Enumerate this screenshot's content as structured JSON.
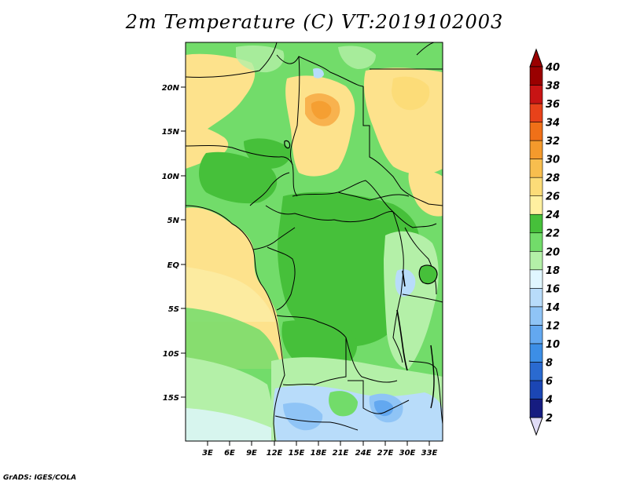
{
  "title": "2m Temperature (C) VT:2019102003",
  "footer": "GrADS: IGES/COLA",
  "map": {
    "lat_labels": [
      "20N",
      "15N",
      "10N",
      "5N",
      "EQ",
      "5S",
      "10S",
      "15S"
    ],
    "lon_labels": [
      "3E",
      "6E",
      "9E",
      "12E",
      "15E",
      "18E",
      "21E",
      "24E",
      "27E",
      "30E",
      "33E"
    ]
  },
  "colorbar": {
    "levels": [
      "2",
      "4",
      "6",
      "8",
      "10",
      "12",
      "14",
      "16",
      "18",
      "20",
      "22",
      "24",
      "26",
      "28",
      "30",
      "32",
      "34",
      "36",
      "38",
      "40"
    ],
    "colors": [
      "#e0dcf6",
      "#161c80",
      "#1b46b4",
      "#2a6ad0",
      "#3c8ee6",
      "#63a8f0",
      "#8fc4f6",
      "#b8dcfa",
      "#e0f6ff",
      "#b4f0a8",
      "#72dc6a",
      "#46c03a",
      "#fff0a0",
      "#fcdc78",
      "#f8be4e",
      "#f49a2c",
      "#f07018",
      "#e8421a",
      "#c81414",
      "#9a0000"
    ],
    "top_color": "#9a0000",
    "bottom_color": "#e0dcf6"
  },
  "palette": {
    "ocean_warm": "#fde28c",
    "ocean_cool": "#fcf2b0",
    "green_dark": "#46c03a",
    "green_mid": "#72dc6a",
    "green_light": "#b4f0a8",
    "blue_light": "#b8dcfa",
    "blue_mid": "#8fc4f6",
    "orange": "#f8b24e"
  }
}
